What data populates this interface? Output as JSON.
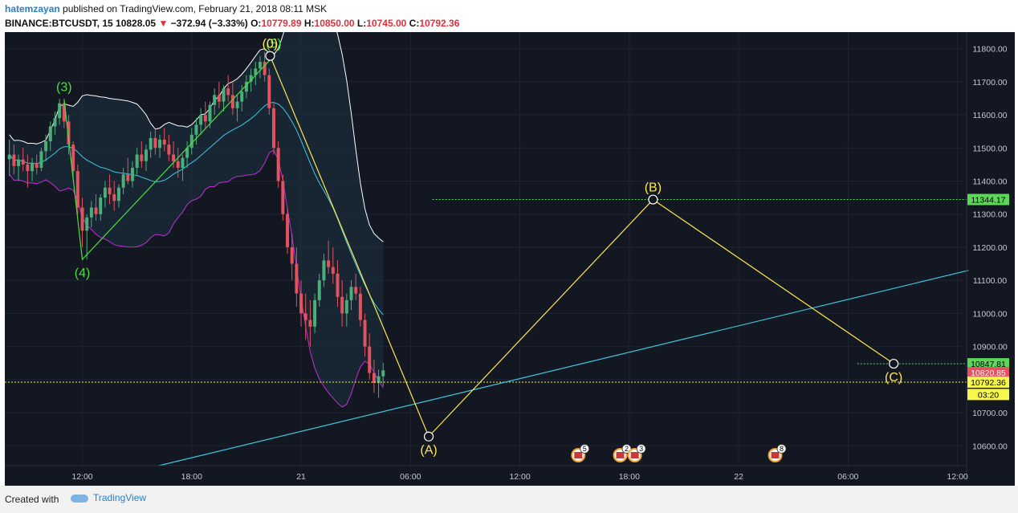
{
  "header": {
    "author": "hatemzayan",
    "published_text": "published on TradingView.com, February 21, 2018 08:11 MSK",
    "symbol": "BINANCE:BTCUSDT, 15",
    "last": "10828.05",
    "change": "−372.94 (−3.33%)",
    "open_label": "O:",
    "open": "10779.89",
    "high_label": "H:",
    "high": "10850.00",
    "low_label": "L:",
    "low": "10745.00",
    "close_label": "C:",
    "close": "10792.36"
  },
  "footer": {
    "created_with": "Created with",
    "logo_text": "TradingView"
  },
  "colors": {
    "background": "#131722",
    "grid": "#1f2433",
    "candle_up": "#4caf7a",
    "candle_down": "#e0535f",
    "wave_green": "#4cde3c",
    "wave_yellow": "#ffe84d",
    "trendline": "#3fc7e0",
    "bb_upper": "#ffffff",
    "bb_lower": "#c02fd6",
    "ma": "#3fc7e0",
    "current_price_line": "#f6f64c",
    "level_green": "#5cd75a"
  },
  "chart_data": {
    "type": "candlestick",
    "symbol": "BINANCE:BTCUSDT",
    "timeframe": "15",
    "y_range": [
      10540,
      11850
    ],
    "y_ticks": [
      10600,
      10700,
      10800,
      10900,
      11000,
      11100,
      11200,
      11300,
      11400,
      11500,
      11600,
      11700,
      11800
    ],
    "y_tick_labels": [
      "10600.00",
      "10700.00",
      "10800.00",
      "10900.00",
      "11000.00",
      "11100.00",
      "11200.00",
      "11300.00",
      "11400.00",
      "11500.00",
      "11600.00",
      "11700.00",
      "11800.00"
    ],
    "x_tick_labels": [
      "12:00",
      "18:00",
      "21",
      "06:00",
      "12:00",
      "18:00",
      "22",
      "06:00",
      "12:00"
    ],
    "x_tick_hours": [
      12,
      18,
      24,
      30,
      36,
      42,
      48,
      54,
      60
    ],
    "x_range_hours": [
      7.75,
      60.5
    ],
    "x_axis_note": "hours since Feb 20 00:00",
    "price_markers": [
      {
        "label": "11344.17",
        "value": 11344.17,
        "bg": "#5cd75a",
        "fg": "#000000"
      },
      {
        "label": "10847.81",
        "value": 10847.81,
        "bg": "#5cd75a",
        "fg": "#000000"
      },
      {
        "label": "10820.85",
        "value": 10820.85,
        "bg": "#e0535f",
        "fg": "#ffffff"
      },
      {
        "label": "10792.36",
        "value": 10792.36,
        "bg": "#f6f64c",
        "fg": "#000000"
      },
      {
        "label": "03:20",
        "value": 10755,
        "bg": "#f6f64c",
        "fg": "#000000"
      }
    ],
    "current_price": 10792.36,
    "levels": [
      {
        "value": 11344.17,
        "from_hour": 31.2,
        "to_hour": 60.5
      },
      {
        "value": 10847.81,
        "from_hour": 54.5,
        "to_hour": 60.5
      }
    ],
    "wave_points_green": [
      {
        "label": "(3)",
        "hour": 11.0,
        "price": 11648
      },
      {
        "label": "(4)",
        "hour": 12.0,
        "price": 11163
      },
      {
        "label": "(5)",
        "hour": 22.5,
        "price": 11778
      }
    ],
    "wave_points_yellow": [
      {
        "label": "(0)",
        "hour": 22.3,
        "price": 11778
      },
      {
        "label": "(A)",
        "hour": 31.0,
        "price": 10628
      },
      {
        "label": "(B)",
        "hour": 43.3,
        "price": 11344
      },
      {
        "label": "(C)",
        "hour": 56.5,
        "price": 10848
      }
    ],
    "trendline": {
      "from_hour": 16.2,
      "from_price": 10540,
      "to_hour": 60.6,
      "to_price": 11130
    },
    "events": [
      {
        "hour": 39.2,
        "badge": "5"
      },
      {
        "hour": 41.5,
        "badge": "2"
      },
      {
        "hour": 42.3,
        "badge": "3"
      },
      {
        "hour": 50.0,
        "badge": "8"
      }
    ],
    "candles": [
      [
        8.0,
        11466,
        11525,
        11415,
        11480
      ],
      [
        8.25,
        11480,
        11510,
        11420,
        11445
      ],
      [
        8.5,
        11445,
        11480,
        11400,
        11465
      ],
      [
        8.75,
        11465,
        11500,
        11430,
        11450
      ],
      [
        9.0,
        11450,
        11480,
        11380,
        11430
      ],
      [
        9.25,
        11430,
        11470,
        11400,
        11455
      ],
      [
        9.5,
        11455,
        11480,
        11420,
        11440
      ],
      [
        9.75,
        11440,
        11500,
        11430,
        11490
      ],
      [
        10.0,
        11490,
        11540,
        11460,
        11520
      ],
      [
        10.25,
        11520,
        11580,
        11490,
        11565
      ],
      [
        10.5,
        11565,
        11610,
        11540,
        11590
      ],
      [
        10.75,
        11590,
        11648,
        11570,
        11635
      ],
      [
        11.0,
        11635,
        11640,
        11560,
        11580
      ],
      [
        11.25,
        11580,
        11600,
        11480,
        11510
      ],
      [
        11.5,
        11510,
        11520,
        11400,
        11430
      ],
      [
        11.75,
        11430,
        11450,
        11300,
        11320
      ],
      [
        12.0,
        11320,
        11350,
        11200,
        11250
      ],
      [
        12.25,
        11250,
        11300,
        11163,
        11290
      ],
      [
        12.5,
        11290,
        11340,
        11260,
        11320
      ],
      [
        12.75,
        11320,
        11360,
        11280,
        11300
      ],
      [
        13.0,
        11300,
        11360,
        11280,
        11350
      ],
      [
        13.25,
        11350,
        11400,
        11320,
        11380
      ],
      [
        13.5,
        11380,
        11420,
        11330,
        11360
      ],
      [
        13.75,
        11360,
        11400,
        11310,
        11340
      ],
      [
        14.0,
        11340,
        11390,
        11320,
        11380
      ],
      [
        14.25,
        11380,
        11440,
        11360,
        11420
      ],
      [
        14.5,
        11420,
        11470,
        11390,
        11400
      ],
      [
        14.75,
        11400,
        11460,
        11380,
        11440
      ],
      [
        15.0,
        11440,
        11500,
        11420,
        11480
      ],
      [
        15.25,
        11480,
        11520,
        11440,
        11460
      ],
      [
        15.5,
        11460,
        11510,
        11430,
        11495
      ],
      [
        15.75,
        11495,
        11550,
        11470,
        11530
      ],
      [
        16.0,
        11530,
        11560,
        11480,
        11500
      ],
      [
        16.25,
        11500,
        11540,
        11470,
        11525
      ],
      [
        16.5,
        11525,
        11560,
        11490,
        11510
      ],
      [
        16.75,
        11510,
        11540,
        11460,
        11480
      ],
      [
        17.0,
        11480,
        11520,
        11440,
        11460
      ],
      [
        17.25,
        11460,
        11500,
        11410,
        11440
      ],
      [
        17.5,
        11440,
        11480,
        11400,
        11470
      ],
      [
        17.75,
        11470,
        11520,
        11440,
        11500
      ],
      [
        18.0,
        11500,
        11560,
        11480,
        11540
      ],
      [
        18.25,
        11540,
        11590,
        11510,
        11570
      ],
      [
        18.5,
        11570,
        11620,
        11540,
        11600
      ],
      [
        18.75,
        11600,
        11640,
        11560,
        11580
      ],
      [
        19.0,
        11580,
        11640,
        11560,
        11630
      ],
      [
        19.25,
        11630,
        11680,
        11600,
        11660
      ],
      [
        19.5,
        11660,
        11700,
        11620,
        11640
      ],
      [
        19.75,
        11640,
        11690,
        11610,
        11680
      ],
      [
        20.0,
        11680,
        11720,
        11640,
        11660
      ],
      [
        20.25,
        11660,
        11700,
        11600,
        11620
      ],
      [
        20.5,
        11620,
        11660,
        11580,
        11640
      ],
      [
        20.75,
        11640,
        11690,
        11610,
        11670
      ],
      [
        21.0,
        11670,
        11720,
        11650,
        11700
      ],
      [
        21.25,
        11700,
        11740,
        11670,
        11720
      ],
      [
        21.5,
        11720,
        11760,
        11690,
        11740
      ],
      [
        21.75,
        11740,
        11778,
        11710,
        11760
      ],
      [
        22.0,
        11760,
        11790,
        11700,
        11720
      ],
      [
        22.25,
        11720,
        11740,
        11600,
        11620
      ],
      [
        22.5,
        11620,
        11640,
        11480,
        11500
      ],
      [
        22.75,
        11500,
        11520,
        11380,
        11400
      ],
      [
        23.0,
        11400,
        11420,
        11280,
        11300
      ],
      [
        23.25,
        11300,
        11320,
        11180,
        11200
      ],
      [
        23.5,
        11200,
        11240,
        11100,
        11150
      ],
      [
        23.75,
        11150,
        11200,
        11020,
        11060
      ],
      [
        24.0,
        11060,
        11100,
        10960,
        11000
      ],
      [
        24.25,
        11000,
        11060,
        10920,
        10980
      ],
      [
        24.5,
        10980,
        11040,
        10900,
        10960
      ],
      [
        24.75,
        10960,
        11060,
        10940,
        11040
      ],
      [
        25.0,
        11040,
        11120,
        11020,
        11100
      ],
      [
        25.25,
        11100,
        11180,
        11080,
        11160
      ],
      [
        25.5,
        11160,
        11220,
        11120,
        11140
      ],
      [
        25.75,
        11140,
        11200,
        11090,
        11120
      ],
      [
        26.0,
        11120,
        11160,
        11020,
        11050
      ],
      [
        26.25,
        11050,
        11100,
        10960,
        11000
      ],
      [
        26.5,
        11000,
        11060,
        10960,
        11040
      ],
      [
        26.75,
        11040,
        11100,
        11010,
        11080
      ],
      [
        27.0,
        11080,
        11120,
        11040,
        11060
      ],
      [
        27.25,
        11060,
        11080,
        10960,
        10980
      ],
      [
        27.5,
        10980,
        11000,
        10870,
        10900
      ],
      [
        27.75,
        10900,
        10940,
        10800,
        10820
      ],
      [
        28.0,
        10820,
        10860,
        10760,
        10790
      ],
      [
        28.25,
        10790,
        10830,
        10745,
        10810
      ],
      [
        28.5,
        10810,
        10850,
        10780,
        10828
      ]
    ]
  }
}
